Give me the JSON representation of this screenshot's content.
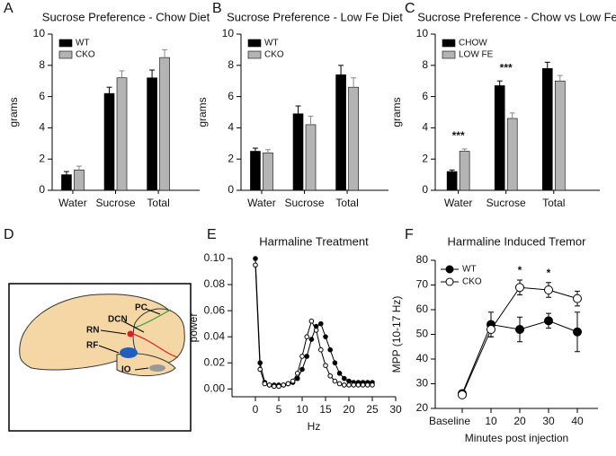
{
  "chart_data": [
    {
      "type": "bar",
      "panel": "A",
      "title": "Sucrose Preference - Chow  Diet",
      "y_label": "grams",
      "categories": [
        "Water",
        "Sucrose",
        "Total"
      ],
      "series": [
        {
          "name": "WT",
          "color": "#000000",
          "values": [
            1.0,
            6.2,
            7.2
          ],
          "errors": [
            0.2,
            0.4,
            0.5
          ]
        },
        {
          "name": "CKO",
          "color": "#b4b4b4",
          "values": [
            1.3,
            7.2,
            8.5
          ],
          "errors": [
            0.25,
            0.45,
            0.5
          ]
        }
      ],
      "ylim": [
        0,
        10
      ],
      "yticks": [
        0,
        2,
        4,
        6,
        8,
        10
      ]
    },
    {
      "type": "bar",
      "panel": "B",
      "title": "Sucrose Preference - Low Fe Diet",
      "y_label": "grams",
      "categories": [
        "Water",
        "Sucrose",
        "Total"
      ],
      "series": [
        {
          "name": "WT",
          "color": "#000000",
          "values": [
            2.5,
            4.9,
            7.4
          ],
          "errors": [
            0.2,
            0.5,
            0.6
          ]
        },
        {
          "name": "CKO",
          "color": "#b4b4b4",
          "values": [
            2.4,
            4.2,
            6.6
          ],
          "errors": [
            0.2,
            0.55,
            0.6
          ]
        }
      ],
      "ylim": [
        0,
        10
      ],
      "yticks": [
        0,
        2,
        4,
        6,
        8,
        10
      ]
    },
    {
      "type": "bar",
      "panel": "C",
      "title": "Sucrose Preference - Chow vs Low Fe",
      "y_label": "grams",
      "categories": [
        "Water",
        "Sucrose",
        "Total"
      ],
      "series": [
        {
          "name": "CHOW",
          "color": "#000000",
          "values": [
            1.2,
            6.7,
            7.8
          ],
          "errors": [
            0.1,
            0.3,
            0.4
          ]
        },
        {
          "name": "LOW FE",
          "color": "#b4b4b4",
          "values": [
            2.5,
            4.6,
            7.0
          ],
          "errors": [
            0.15,
            0.35,
            0.35
          ]
        }
      ],
      "annotations": [
        "***",
        "***",
        null
      ],
      "ylim": [
        0,
        10
      ],
      "yticks": [
        0,
        2,
        4,
        6,
        8,
        10
      ]
    },
    {
      "type": "spectrum",
      "panel": "E",
      "title": "Harmaline Treatment",
      "x_label": "Hz",
      "y_label": "power",
      "x": [
        0,
        1,
        2,
        3,
        4,
        5,
        6,
        7,
        8,
        9,
        10,
        11,
        12,
        13,
        14,
        15,
        16,
        17,
        18,
        19,
        20,
        21,
        22,
        23,
        24,
        25
      ],
      "series": [
        {
          "color": "#000000",
          "marker": "filled",
          "values": [
            0.1,
            0.02,
            0.005,
            0.003,
            0.003,
            0.003,
            0.003,
            0.004,
            0.005,
            0.008,
            0.015,
            0.025,
            0.038,
            0.048,
            0.05,
            0.04,
            0.03,
            0.02,
            0.012,
            0.008,
            0.006,
            0.005,
            0.005,
            0.005,
            0.005,
            0.005
          ]
        },
        {
          "color": "#000000",
          "marker": "open",
          "values": [
            0.095,
            0.015,
            0.004,
            0.003,
            0.002,
            0.002,
            0.003,
            0.004,
            0.006,
            0.012,
            0.025,
            0.04,
            0.052,
            0.045,
            0.03,
            0.018,
            0.01,
            0.006,
            0.004,
            0.003,
            0.003,
            0.003,
            0.003,
            0.003,
            0.003,
            0.003
          ]
        }
      ],
      "xlim": [
        -5,
        30
      ],
      "xticks": [
        0,
        5,
        10,
        15,
        20,
        25,
        30
      ],
      "ylim": [
        -0.006,
        0.1
      ],
      "yticks": [
        {
          "value": 0,
          "label": "0.00"
        },
        {
          "value": 0.02,
          "label": "0.02"
        },
        {
          "value": 0.04,
          "label": "0.04"
        },
        {
          "value": 0.06,
          "label": "0.06"
        },
        {
          "value": 0.08,
          "label": "0.08"
        },
        {
          "value": 0.1,
          "label": "0.10"
        }
      ]
    },
    {
      "type": "line",
      "panel": "F",
      "title": "Harmaline Induced Tremor",
      "x_label": "Minutes post injection",
      "y_label": "MPP (10-17 Hz)",
      "categories": [
        "Baseline",
        "10",
        "20",
        "30",
        "40"
      ],
      "series": [
        {
          "name": "WT",
          "color": "#000000",
          "marker": "filled",
          "values": [
            26,
            54,
            52,
            55.5,
            51
          ],
          "errors": [
            1,
            5,
            5,
            3,
            8
          ]
        },
        {
          "name": "CKO",
          "color": "#000000",
          "marker": "open",
          "values": [
            25.5,
            52,
            69,
            68,
            64.5
          ],
          "errors": [
            1,
            3,
            3,
            3,
            3
          ]
        }
      ],
      "annotations": [
        null,
        null,
        "*",
        "*",
        null
      ],
      "ylim": [
        20,
        80
      ],
      "yticks": [
        20,
        30,
        40,
        50,
        60,
        70,
        80
      ]
    }
  ],
  "diagram": {
    "panel": "D",
    "labels": [
      "PC",
      "DCN",
      "RN",
      "RF",
      "IO"
    ]
  }
}
